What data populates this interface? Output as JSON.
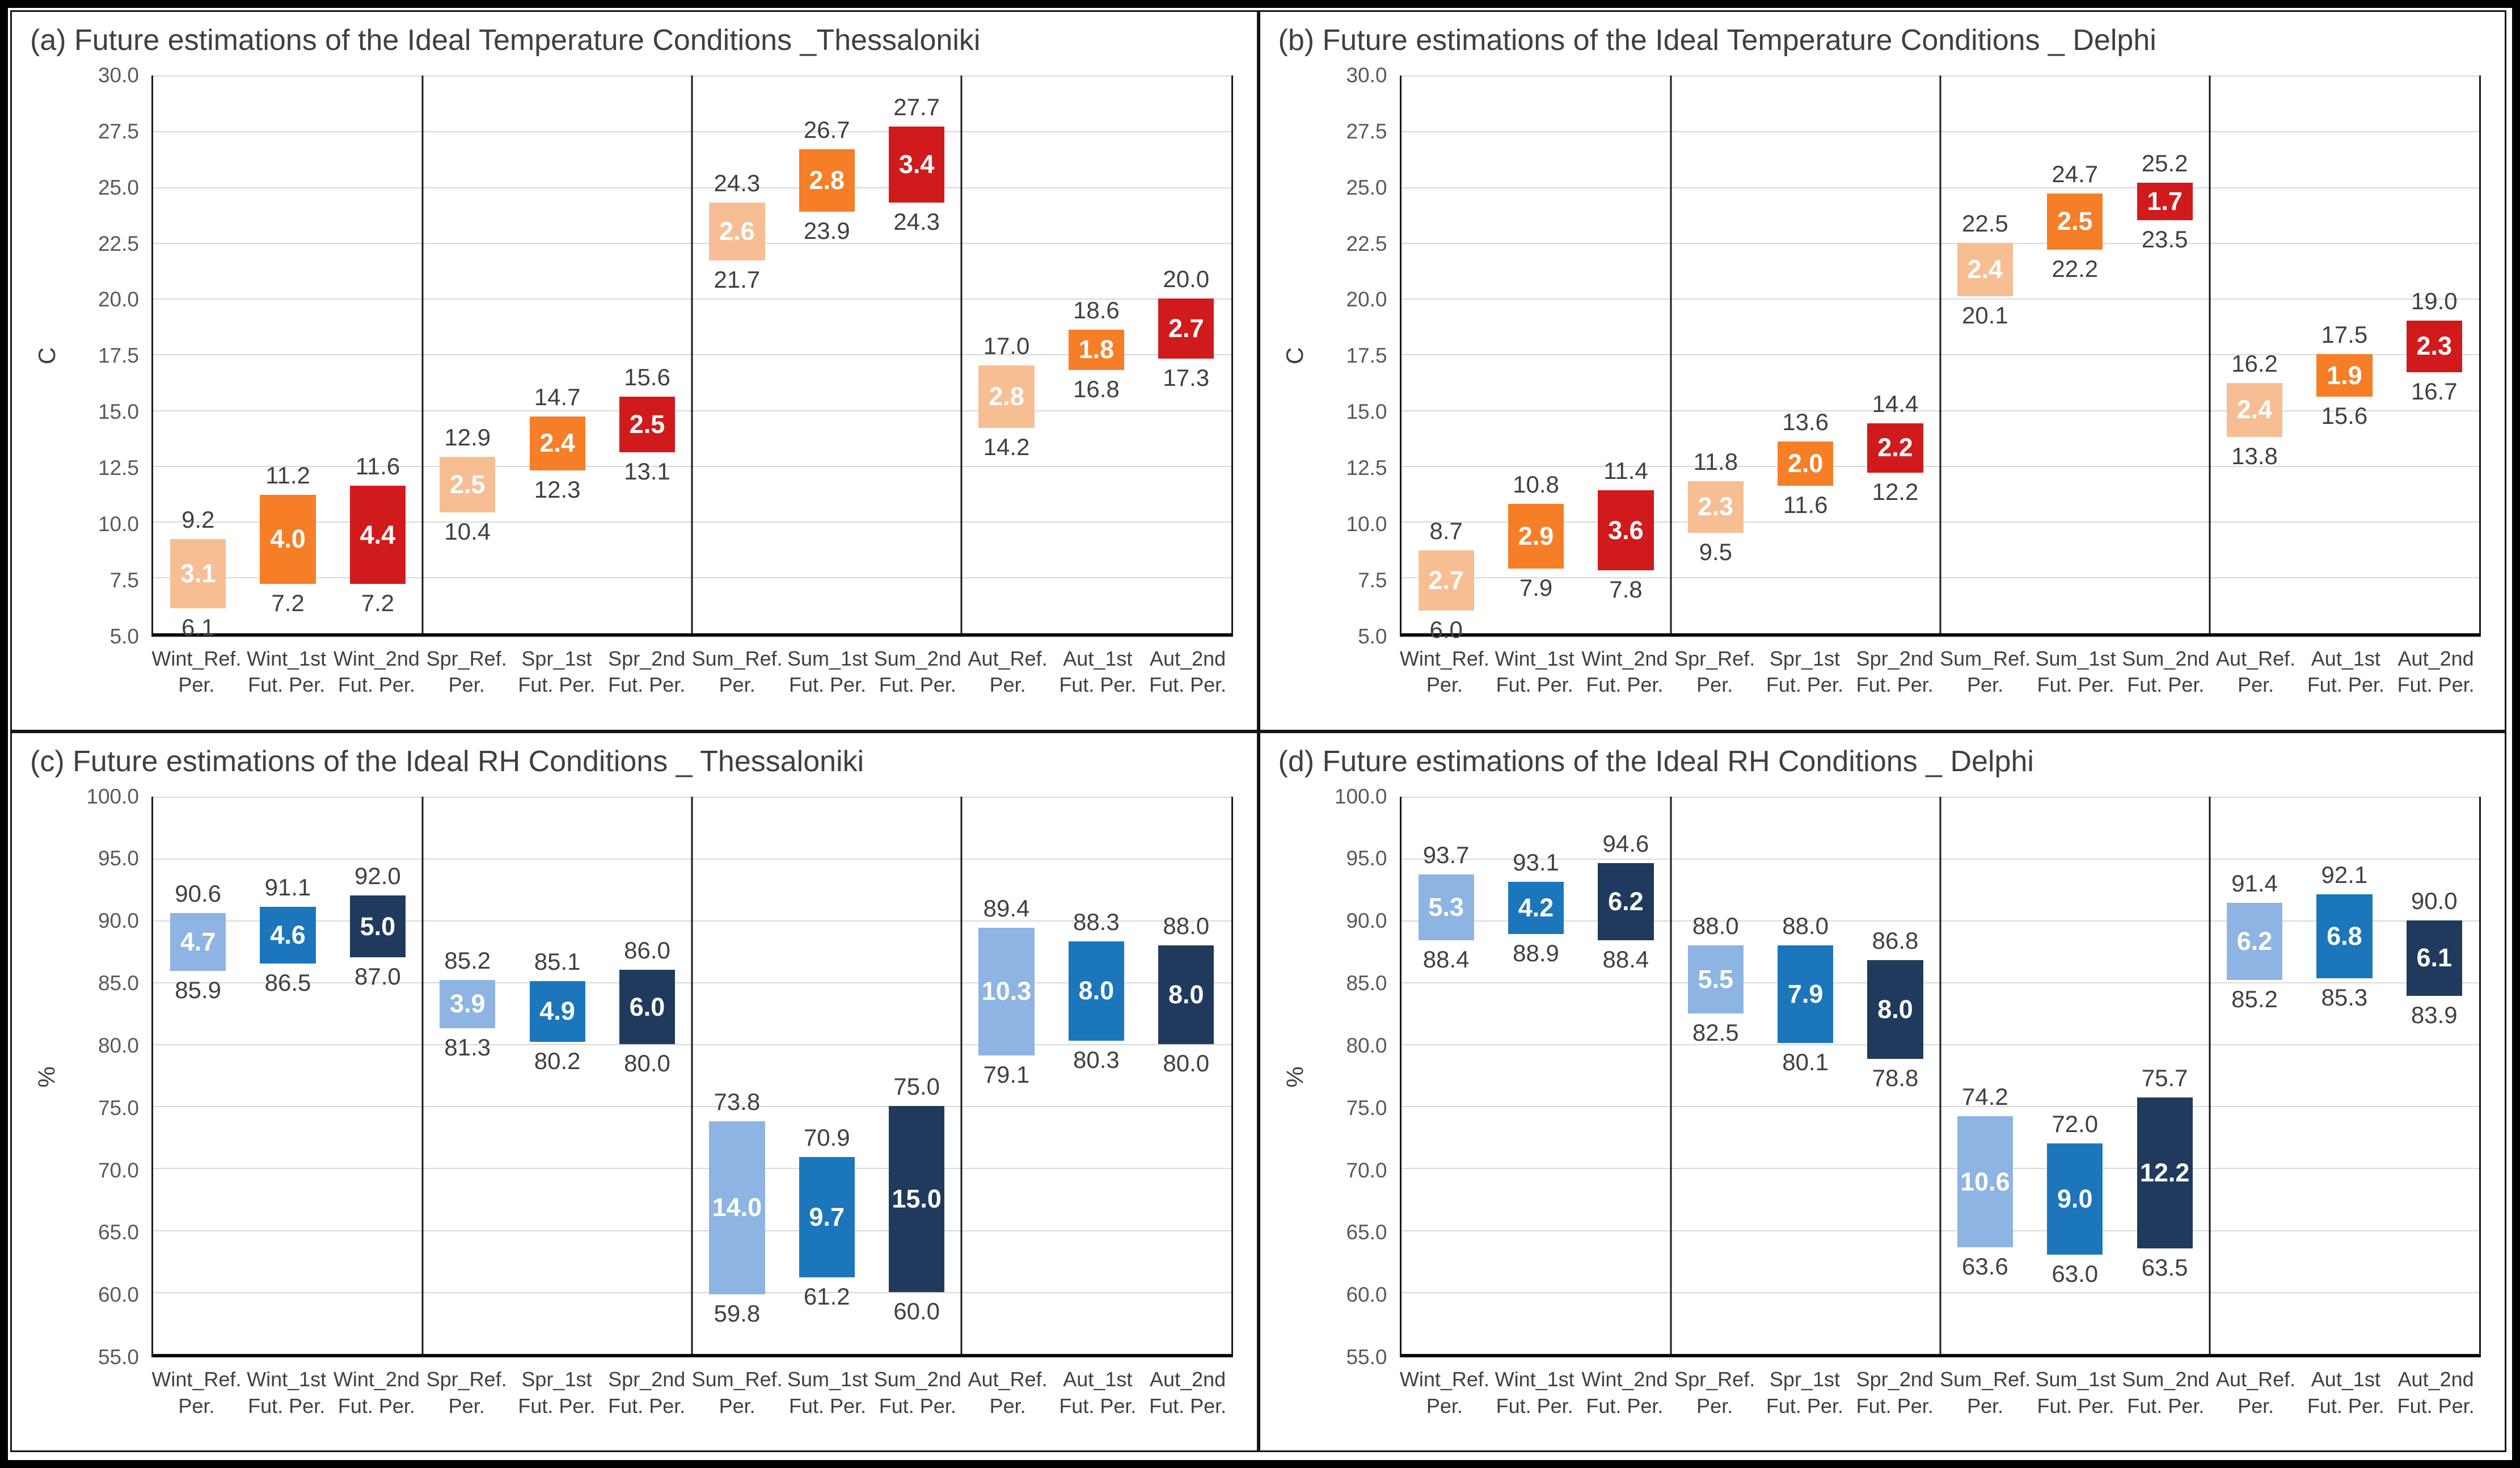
{
  "theme": {
    "title_text": "#3f3f3f",
    "tick_text": "#595959",
    "value_text": "#404040",
    "inner_bar_text": "#ffffff",
    "gridline": "#d9d9d9",
    "axis_line": "#1a1a1a",
    "figure_border": "#000000"
  },
  "chart_data": [
    {
      "type": "bar",
      "subtype": "floating-range",
      "title": "(a) Future estimations of the Ideal Temperature Conditions _Thessaloniki",
      "ylabel": "C",
      "ylim": [
        5.0,
        30.0
      ],
      "ytick_labels": [
        "30.0",
        "27.5",
        "25.0",
        "22.5",
        "20.0",
        "17.5",
        "15.0",
        "12.5",
        "10.0",
        "7.5",
        "5.0"
      ],
      "grid": true,
      "legend": "none",
      "group_separators_at": [
        3,
        6,
        9
      ],
      "colors": {
        "ref": "#F7BE93",
        "fut1": "#F57E27",
        "fut2": "#D11A1C"
      },
      "categories": [
        [
          "Wint_Ref.",
          "Per."
        ],
        [
          "Wint_1st",
          "Fut. Per."
        ],
        [
          "Wint_2nd",
          "Fut. Per."
        ],
        [
          "Spr_Ref.",
          "Per."
        ],
        [
          "Spr_1st",
          "Fut. Per."
        ],
        [
          "Spr_2nd",
          "Fut. Per."
        ],
        [
          "Sum_Ref.",
          "Per."
        ],
        [
          "Sum_1st",
          "Fut. Per."
        ],
        [
          "Sum_2nd",
          "Fut. Per."
        ],
        [
          "Aut_Ref.",
          "Per."
        ],
        [
          "Aut_1st",
          "Fut. Per."
        ],
        [
          "Aut_2nd",
          "Fut. Per."
        ]
      ],
      "bars": [
        {
          "min": "6.1",
          "max": "9.2",
          "range": "3.1"
        },
        {
          "min": "7.2",
          "max": "11.2",
          "range": "4.0"
        },
        {
          "min": "7.2",
          "max": "11.6",
          "range": "4.4"
        },
        {
          "min": "10.4",
          "max": "12.9",
          "range": "2.5"
        },
        {
          "min": "12.3",
          "max": "14.7",
          "range": "2.4"
        },
        {
          "min": "13.1",
          "max": "15.6",
          "range": "2.5"
        },
        {
          "min": "21.7",
          "max": "24.3",
          "range": "2.6"
        },
        {
          "min": "23.9",
          "max": "26.7",
          "range": "2.8"
        },
        {
          "min": "24.3",
          "max": "27.7",
          "range": "3.4"
        },
        {
          "min": "14.2",
          "max": "17.0",
          "range": "2.8"
        },
        {
          "min": "16.8",
          "max": "18.6",
          "range": "1.8"
        },
        {
          "min": "17.3",
          "max": "20.0",
          "range": "2.7"
        }
      ]
    },
    {
      "type": "bar",
      "subtype": "floating-range",
      "title": "(b) Future estimations of the Ideal Temperature Conditions _ Delphi",
      "ylabel": "C",
      "ylim": [
        5.0,
        30.0
      ],
      "ytick_labels": [
        "30.0",
        "27.5",
        "25.0",
        "22.5",
        "20.0",
        "17.5",
        "15.0",
        "12.5",
        "10.0",
        "7.5",
        "5.0"
      ],
      "grid": true,
      "legend": "none",
      "group_separators_at": [
        3,
        6,
        9
      ],
      "colors": {
        "ref": "#F7BE93",
        "fut1": "#F57E27",
        "fut2": "#D11A1C"
      },
      "categories": [
        [
          "Wint_Ref.",
          "Per."
        ],
        [
          "Wint_1st",
          "Fut. Per."
        ],
        [
          "Wint_2nd",
          "Fut. Per."
        ],
        [
          "Spr_Ref.",
          "Per."
        ],
        [
          "Spr_1st",
          "Fut. Per."
        ],
        [
          "Spr_2nd",
          "Fut. Per."
        ],
        [
          "Sum_Ref.",
          "Per."
        ],
        [
          "Sum_1st",
          "Fut. Per."
        ],
        [
          "Sum_2nd",
          "Fut. Per."
        ],
        [
          "Aut_Ref.",
          "Per."
        ],
        [
          "Aut_1st",
          "Fut. Per."
        ],
        [
          "Aut_2nd",
          "Fut. Per."
        ]
      ],
      "bars": [
        {
          "min": "6.0",
          "max": "8.7",
          "range": "2.7"
        },
        {
          "min": "7.9",
          "max": "10.8",
          "range": "2.9"
        },
        {
          "min": "7.8",
          "max": "11.4",
          "range": "3.6"
        },
        {
          "min": "9.5",
          "max": "11.8",
          "range": "2.3"
        },
        {
          "min": "11.6",
          "max": "13.6",
          "range": "2.0"
        },
        {
          "min": "12.2",
          "max": "14.4",
          "range": "2.2"
        },
        {
          "min": "20.1",
          "max": "22.5",
          "range": "2.4"
        },
        {
          "min": "22.2",
          "max": "24.7",
          "range": "2.5"
        },
        {
          "min": "23.5",
          "max": "25.2",
          "range": "1.7"
        },
        {
          "min": "13.8",
          "max": "16.2",
          "range": "2.4"
        },
        {
          "min": "15.6",
          "max": "17.5",
          "range": "1.9"
        },
        {
          "min": "16.7",
          "max": "19.0",
          "range": "2.3"
        }
      ]
    },
    {
      "type": "bar",
      "subtype": "floating-range",
      "title": "(c) Future estimations of the Ideal RH Conditions _ Thessaloniki",
      "ylabel": "%",
      "ylim": [
        55.0,
        100.0
      ],
      "ytick_labels": [
        "100.0",
        "95.0",
        "90.0",
        "85.0",
        "80.0",
        "75.0",
        "70.0",
        "65.0",
        "60.0",
        "55.0"
      ],
      "grid": true,
      "legend": "none",
      "group_separators_at": [
        3,
        6,
        9
      ],
      "colors": {
        "ref": "#8DB4E2",
        "fut1": "#1B76BC",
        "fut2": "#1F3A5C"
      },
      "categories": [
        [
          "Wint_Ref.",
          "Per."
        ],
        [
          "Wint_1st",
          "Fut. Per."
        ],
        [
          "Wint_2nd",
          "Fut. Per."
        ],
        [
          "Spr_Ref.",
          "Per."
        ],
        [
          "Spr_1st",
          "Fut. Per."
        ],
        [
          "Spr_2nd",
          "Fut. Per."
        ],
        [
          "Sum_Ref.",
          "Per."
        ],
        [
          "Sum_1st",
          "Fut. Per."
        ],
        [
          "Sum_2nd",
          "Fut. Per."
        ],
        [
          "Aut_Ref.",
          "Per."
        ],
        [
          "Aut_1st",
          "Fut. Per."
        ],
        [
          "Aut_2nd",
          "Fut. Per."
        ]
      ],
      "bars": [
        {
          "min": "85.9",
          "max": "90.6",
          "range": "4.7"
        },
        {
          "min": "86.5",
          "max": "91.1",
          "range": "4.6"
        },
        {
          "min": "87.0",
          "max": "92.0",
          "range": "5.0"
        },
        {
          "min": "81.3",
          "max": "85.2",
          "range": "3.9"
        },
        {
          "min": "80.2",
          "max": "85.1",
          "range": "4.9"
        },
        {
          "min": "80.0",
          "max": "86.0",
          "range": "6.0"
        },
        {
          "min": "59.8",
          "max": "73.8",
          "range": "14.0"
        },
        {
          "min": "61.2",
          "max": "70.9",
          "range": "9.7"
        },
        {
          "min": "60.0",
          "max": "75.0",
          "range": "15.0"
        },
        {
          "min": "79.1",
          "max": "89.4",
          "range": "10.3"
        },
        {
          "min": "80.3",
          "max": "88.3",
          "range": "8.0"
        },
        {
          "min": "80.0",
          "max": "88.0",
          "range": "8.0"
        }
      ]
    },
    {
      "type": "bar",
      "subtype": "floating-range",
      "title": "(d) Future estimations of the Ideal RH Conditions _ Delphi",
      "ylabel": "%",
      "ylim": [
        55.0,
        100.0
      ],
      "ytick_labels": [
        "100.0",
        "95.0",
        "90.0",
        "85.0",
        "80.0",
        "75.0",
        "70.0",
        "65.0",
        "60.0",
        "55.0"
      ],
      "grid": true,
      "legend": "none",
      "group_separators_at": [
        3,
        6,
        9
      ],
      "colors": {
        "ref": "#8DB4E2",
        "fut1": "#1B76BC",
        "fut2": "#1F3A5C"
      },
      "categories": [
        [
          "Wint_Ref.",
          "Per."
        ],
        [
          "Wint_1st",
          "Fut. Per."
        ],
        [
          "Wint_2nd",
          "Fut. Per."
        ],
        [
          "Spr_Ref.",
          "Per."
        ],
        [
          "Spr_1st",
          "Fut. Per."
        ],
        [
          "Spr_2nd",
          "Fut. Per."
        ],
        [
          "Sum_Ref.",
          "Per."
        ],
        [
          "Sum_1st",
          "Fut. Per."
        ],
        [
          "Sum_2nd",
          "Fut. Per."
        ],
        [
          "Aut_Ref.",
          "Per."
        ],
        [
          "Aut_1st",
          "Fut. Per."
        ],
        [
          "Aut_2nd",
          "Fut. Per."
        ]
      ],
      "bars": [
        {
          "min": "88.4",
          "max": "93.7",
          "range": "5.3"
        },
        {
          "min": "88.9",
          "max": "93.1",
          "range": "4.2"
        },
        {
          "min": "88.4",
          "max": "94.6",
          "range": "6.2"
        },
        {
          "min": "82.5",
          "max": "88.0",
          "range": "5.5"
        },
        {
          "min": "80.1",
          "max": "88.0",
          "range": "7.9"
        },
        {
          "min": "78.8",
          "max": "86.8",
          "range": "8.0"
        },
        {
          "min": "63.6",
          "max": "74.2",
          "range": "10.6"
        },
        {
          "min": "63.0",
          "max": "72.0",
          "range": "9.0"
        },
        {
          "min": "63.5",
          "max": "75.7",
          "range": "12.2"
        },
        {
          "min": "85.2",
          "max": "91.4",
          "range": "6.2"
        },
        {
          "min": "85.3",
          "max": "92.1",
          "range": "6.8"
        },
        {
          "min": "83.9",
          "max": "90.0",
          "range": "6.1"
        }
      ]
    }
  ]
}
